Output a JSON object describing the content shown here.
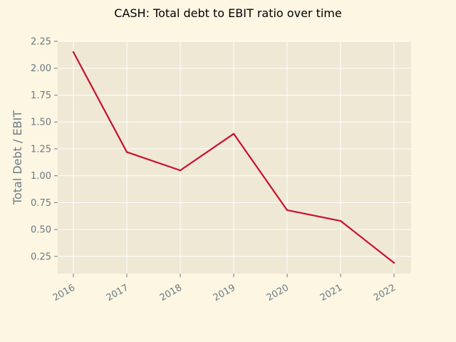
{
  "chart_data": {
    "type": "line",
    "title": "CASH: Total debt to EBIT ratio over time",
    "xlabel": "",
    "ylabel": "Total Debt / EBIT",
    "x": [
      "2016",
      "2017",
      "2018",
      "2019",
      "2020",
      "2021",
      "2022"
    ],
    "series": [
      {
        "values": [
          2.15,
          1.22,
          1.05,
          1.39,
          0.68,
          0.58,
          0.19
        ]
      }
    ],
    "yticks": [
      "0.25",
      "0.50",
      "0.75",
      "1.00",
      "1.25",
      "1.50",
      "1.75",
      "2.00",
      "2.25"
    ],
    "ylim": [
      0.09,
      2.25
    ],
    "grid": true,
    "colors": {
      "line": "#c8102e",
      "plot_bg": "#eee8d5",
      "figure_bg": "#fdf6e3",
      "grid": "#ffffff",
      "tick_text": "#6b7b82"
    }
  }
}
